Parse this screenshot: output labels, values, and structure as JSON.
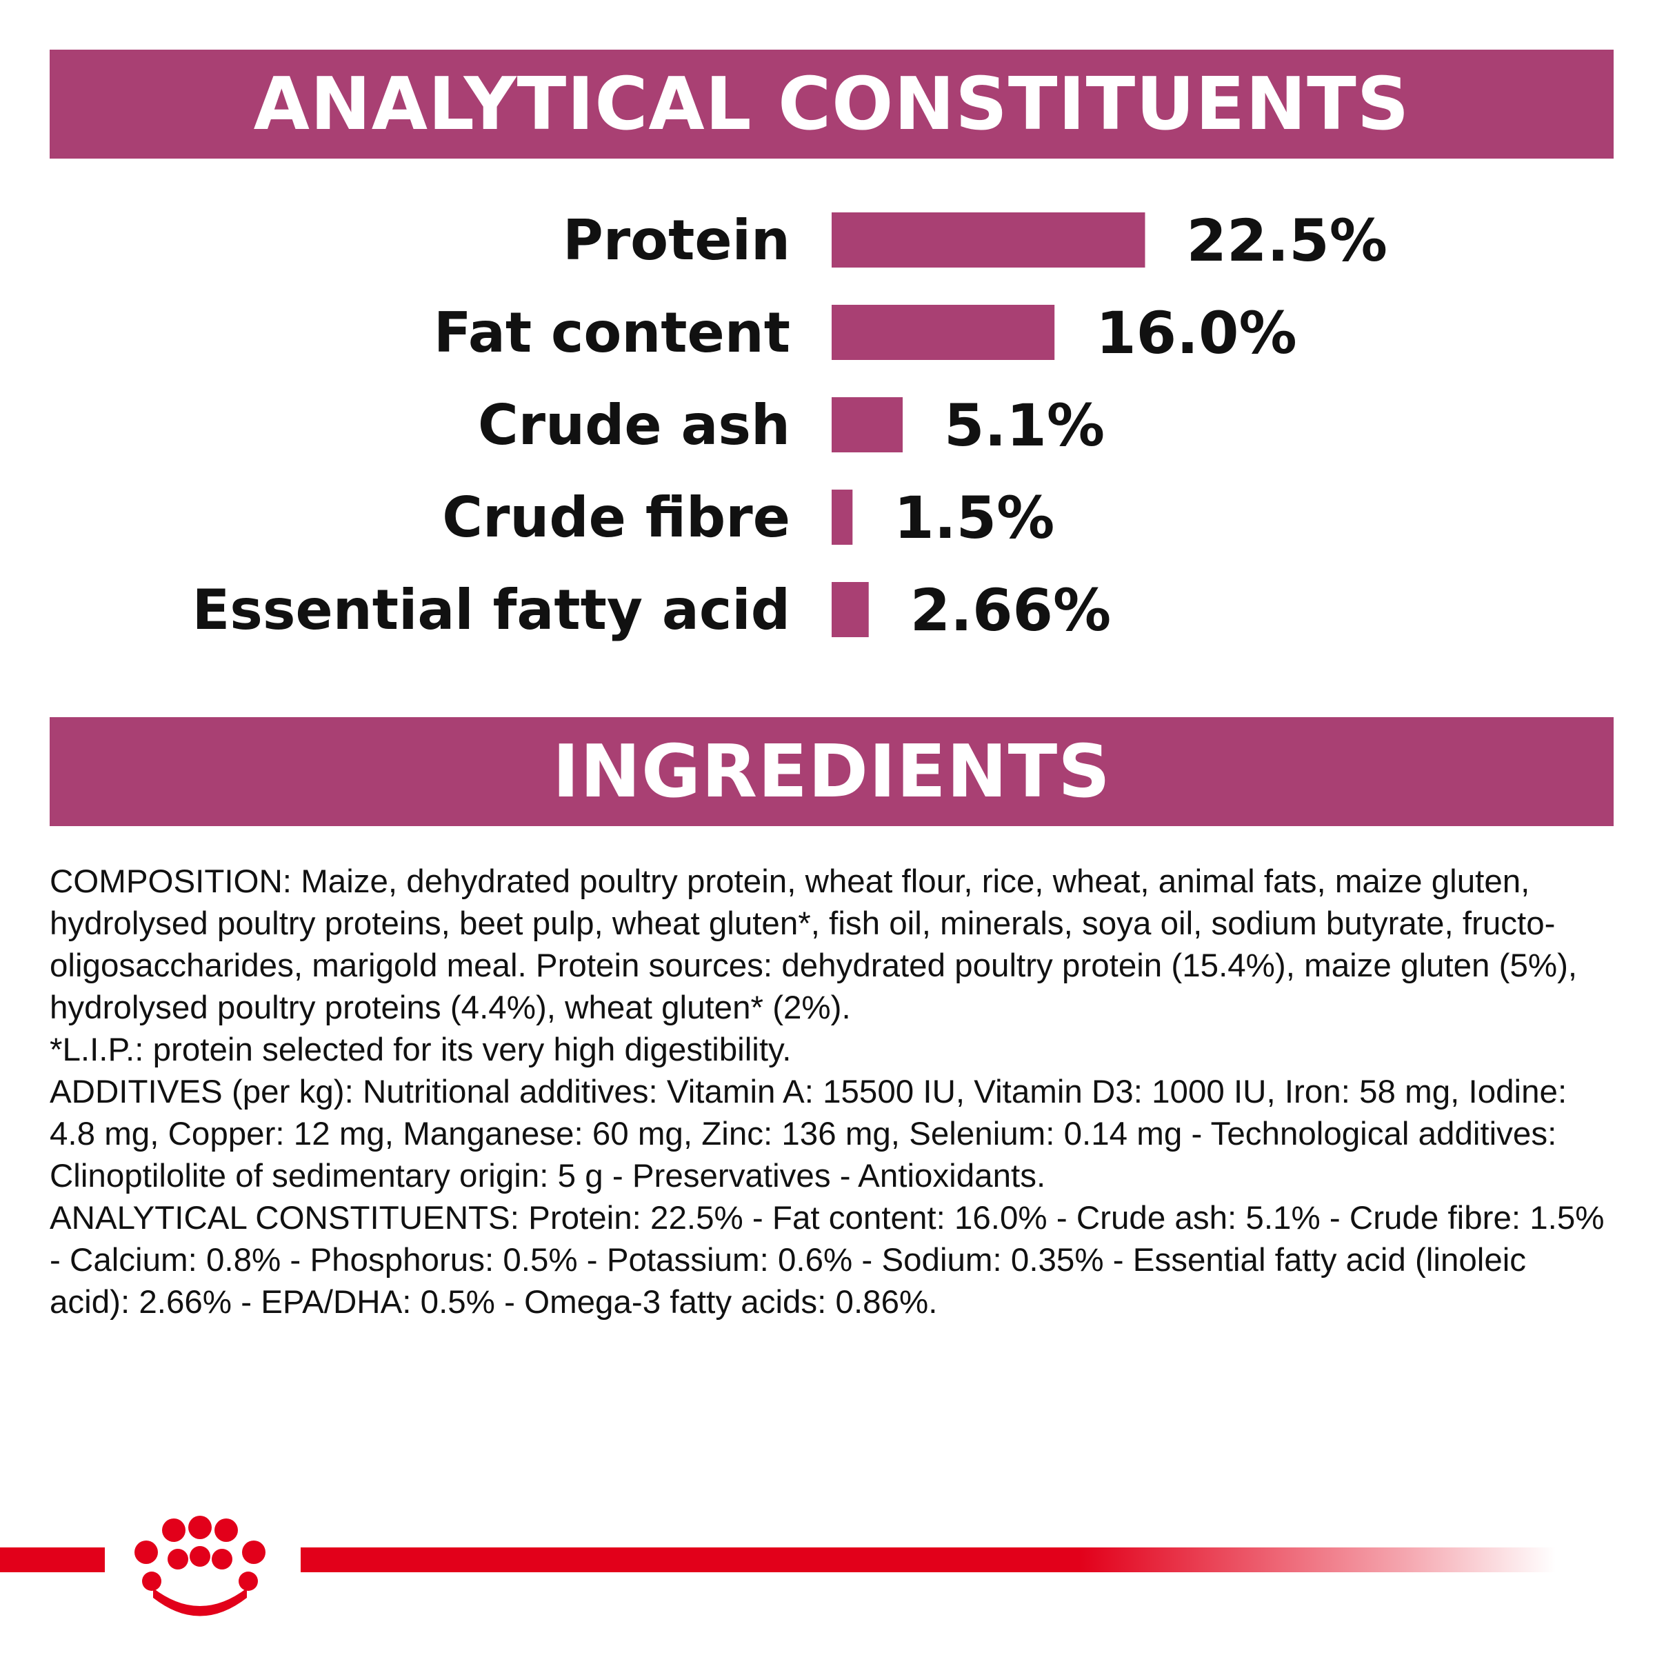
{
  "colors": {
    "banner": "#a94073",
    "bar": "#a94073",
    "brand_red": "#e2001a",
    "text": "#111111"
  },
  "sections": {
    "analytical_title": "ANALYTICAL CONSTITUENTS",
    "ingredients_title": "INGREDIENTS"
  },
  "chart_data": {
    "type": "bar",
    "orientation": "horizontal",
    "categories": [
      "Protein",
      "Fat content",
      "Crude ash",
      "Crude fibre",
      "Essential fatty acid"
    ],
    "values": [
      22.5,
      16.0,
      5.1,
      1.5,
      2.66
    ],
    "value_labels": [
      "22.5%",
      "16.0%",
      "5.1%",
      "1.5%",
      "2.66%"
    ],
    "unit": "%",
    "grid": false,
    "legend": "none"
  },
  "ingredients": {
    "composition_prefix": "COMPOSITION:",
    "composition_text": "Maize, dehydrated poultry protein, wheat flour, rice, wheat, animal fats, maize gluten, hydrolysed poultry proteins, beet pulp, wheat gluten*, fish oil, minerals, soya oil, sodium butyrate, fructo-oligosaccharides, marigold meal. Protein sources: dehydrated poultry protein (15.4%), maize gluten (5%), hydrolysed poultry proteins (4.4%), wheat gluten* (2%).",
    "lip_note": "*L.I.P.: protein selected for its very high digestibility.",
    "additives_prefix": "ADDITIVES (per kg):",
    "additives_text": "Nutritional additives: Vitamin A: 15500 IU, Vitamin D3: 1000 IU, Iron: 58 mg, Iodine: 4.8 mg, Copper: 12 mg, Manganese: 60 mg, Zinc: 136 mg, Selenium: 0.14 mg - Technological additives: Clinoptilolite of sedimentary origin: 5 g - Preservatives - Antioxidants.",
    "analytical_prefix": "ANALYTICAL CONSTITUENTS:",
    "analytical_text": "Protein: 22.5% - Fat content: 16.0% - Crude ash: 5.1% - Crude fibre: 1.5% - Calcium: 0.8% - Phosphorus: 0.5% - Potassium: 0.6% - Sodium: 0.35% - Essential fatty acid (linoleic acid): 2.66% - EPA/DHA: 0.5% - Omega-3 fatty acids: 0.86%."
  },
  "logo": {
    "icon": "royal-crown-icon"
  }
}
